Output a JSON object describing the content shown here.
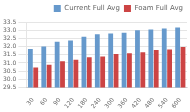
{
  "chart_data": {
    "type": "bar",
    "categories": [
      "30",
      "60",
      "90",
      "120",
      "180",
      "240",
      "300",
      "360",
      "420",
      "480",
      "540",
      "600"
    ],
    "series": [
      {
        "name": "Current\nFull Avg",
        "color": "#6699CC",
        "values": [
          31.85,
          32.0,
          32.3,
          32.37,
          32.6,
          32.75,
          32.8,
          32.85,
          33.0,
          33.05,
          33.1,
          33.17
        ]
      },
      {
        "name": "Foam Full\nAvg",
        "color": "#CC4444",
        "values": [
          30.73,
          30.9,
          31.1,
          31.2,
          31.35,
          31.4,
          31.55,
          31.6,
          31.65,
          31.8,
          31.82,
          31.97
        ]
      }
    ],
    "ylim": [
      29.5,
      33.5
    ],
    "yticks": [
      29.5,
      {
        "value": 30.0,
        "label": "30.0"
      },
      30.5,
      {
        "value": 31.0,
        "label": "31.0"
      },
      31.5,
      {
        "value": 32.0,
        "label": "32.0"
      },
      32.5,
      {
        "value": 33.0,
        "label": "33.0"
      },
      33.5
    ],
    "grid": true,
    "legend": "upper right"
  }
}
